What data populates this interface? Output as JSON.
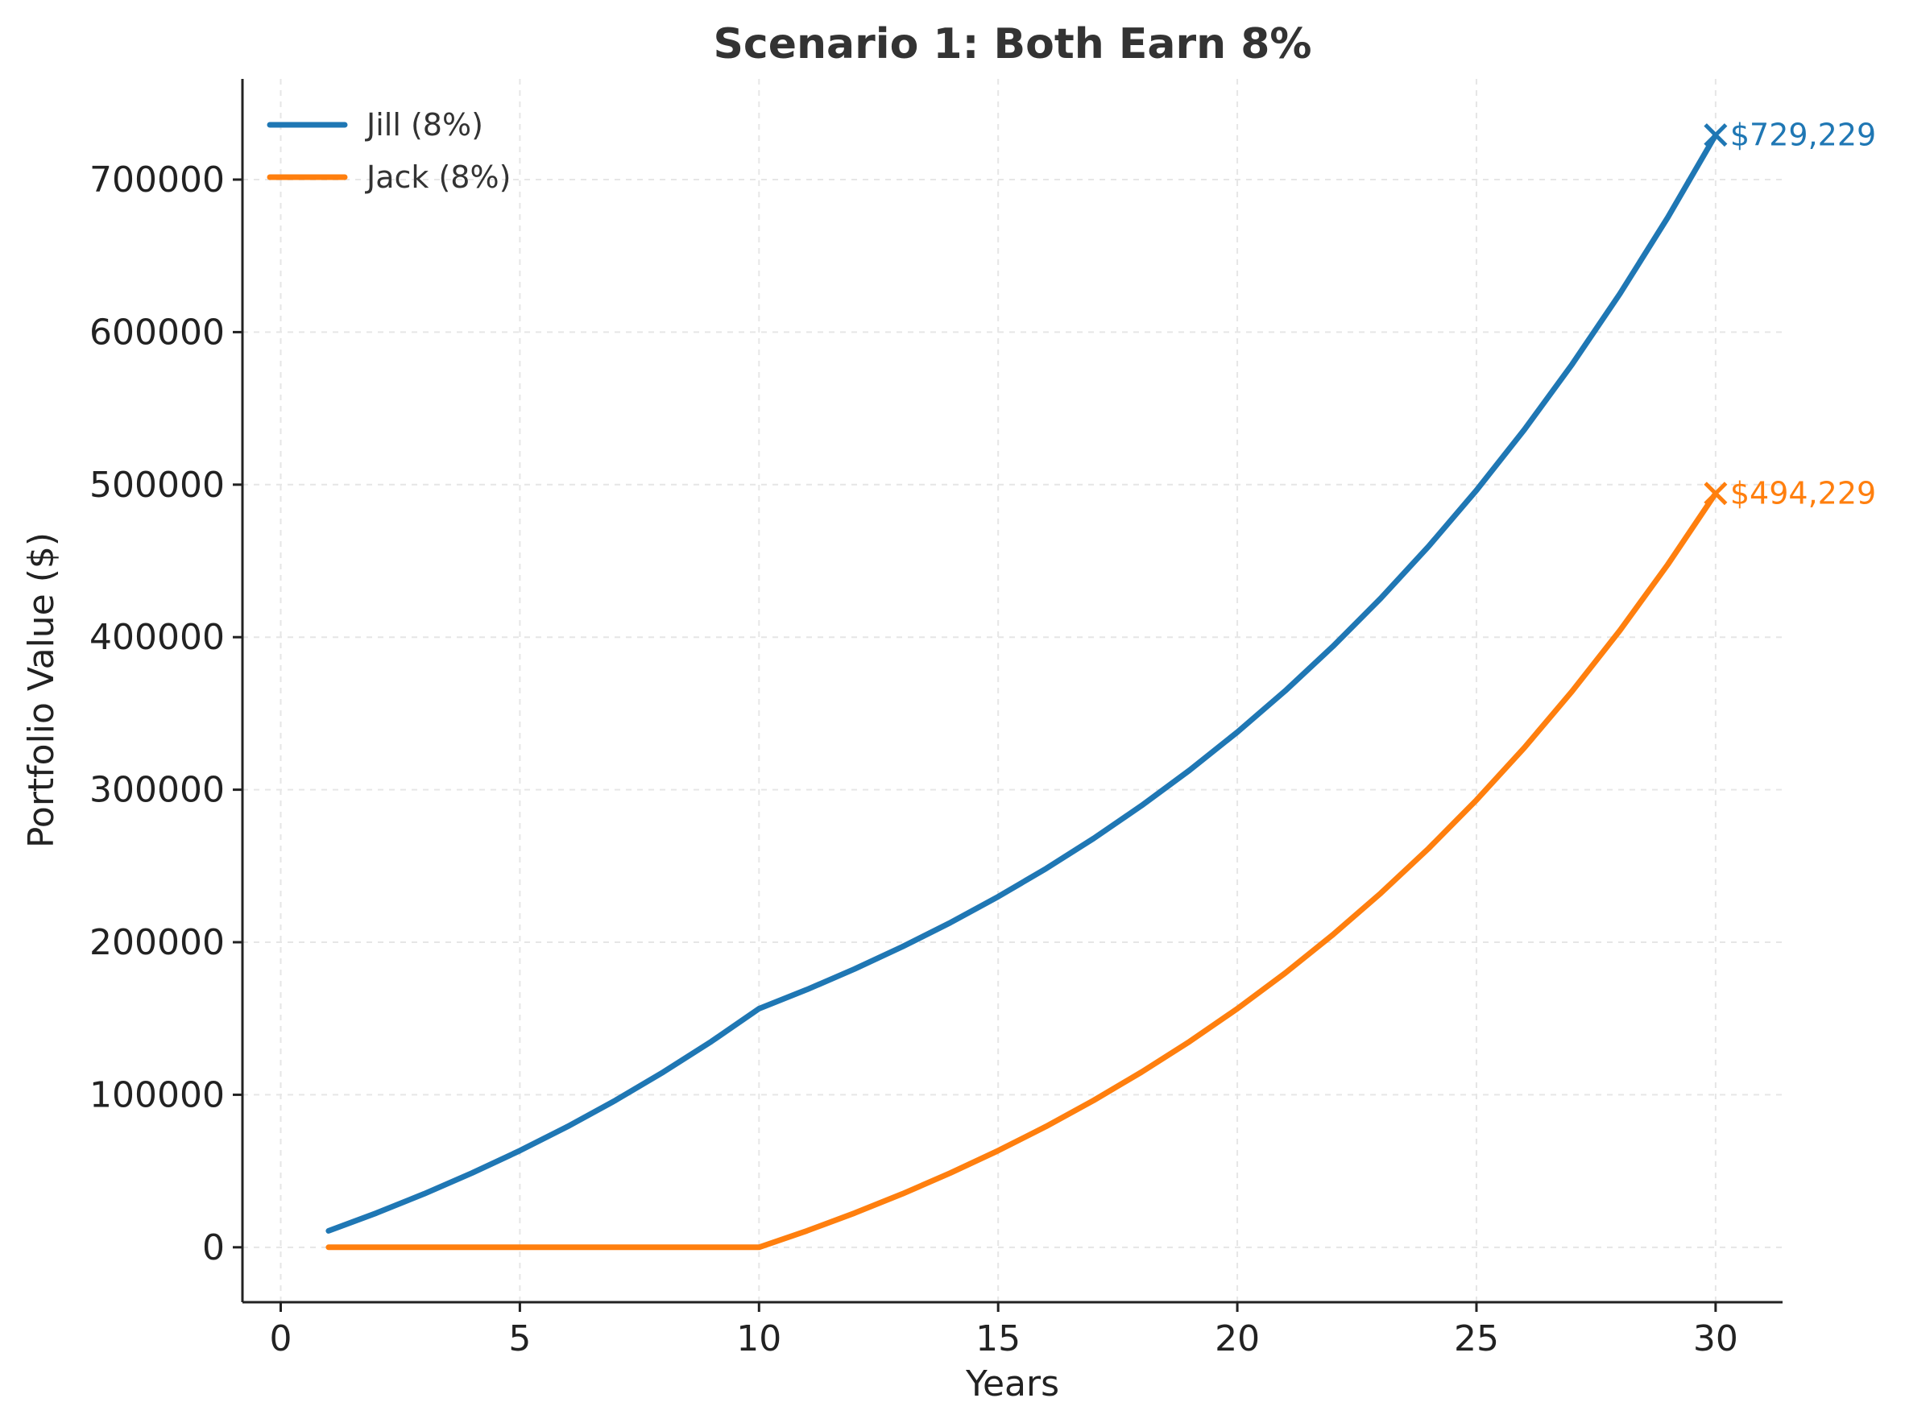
{
  "chart_data": {
    "type": "line",
    "title": "Scenario 1: Both Earn 8%",
    "xlabel": "Years",
    "ylabel": "Portfolio Value ($)",
    "xlim": [
      -0.8,
      31.4
    ],
    "ylim": [
      -36000,
      766000
    ],
    "xticks": [
      0,
      5,
      10,
      15,
      20,
      25,
      30
    ],
    "yticks": [
      0,
      100000,
      200000,
      300000,
      400000,
      500000,
      600000,
      700000
    ],
    "grid": true,
    "legend_position": "top-left",
    "x": [
      1,
      2,
      3,
      4,
      5,
      6,
      7,
      8,
      9,
      10,
      11,
      12,
      13,
      14,
      15,
      16,
      17,
      18,
      19,
      20,
      21,
      22,
      23,
      24,
      25,
      26,
      27,
      28,
      29,
      30
    ],
    "series": [
      {
        "name": "Jill (8%)",
        "color": "#1f77b4",
        "values": [
          10800,
          22464,
          35061,
          48666,
          63359,
          79228,
          96366,
          114876,
          134866,
          156455,
          168971,
          182489,
          197088,
          212855,
          229884,
          248274,
          268136,
          289587,
          312754,
          337774,
          364796,
          393980,
          425498,
          459538,
          496301,
          536005,
          578885,
          625196,
          675212,
          729229
        ],
        "end_label": "$729,229"
      },
      {
        "name": "Jack (8%)",
        "color": "#ff7f0e",
        "values": [
          0,
          0,
          0,
          0,
          0,
          0,
          0,
          0,
          0,
          0,
          10800,
          22464,
          35061,
          48666,
          63359,
          79228,
          96366,
          114876,
          134866,
          156455,
          179771,
          204953,
          232149,
          261521,
          293243,
          327502,
          364502,
          404463,
          447620,
          494229
        ],
        "end_label": "$494,229"
      }
    ]
  }
}
